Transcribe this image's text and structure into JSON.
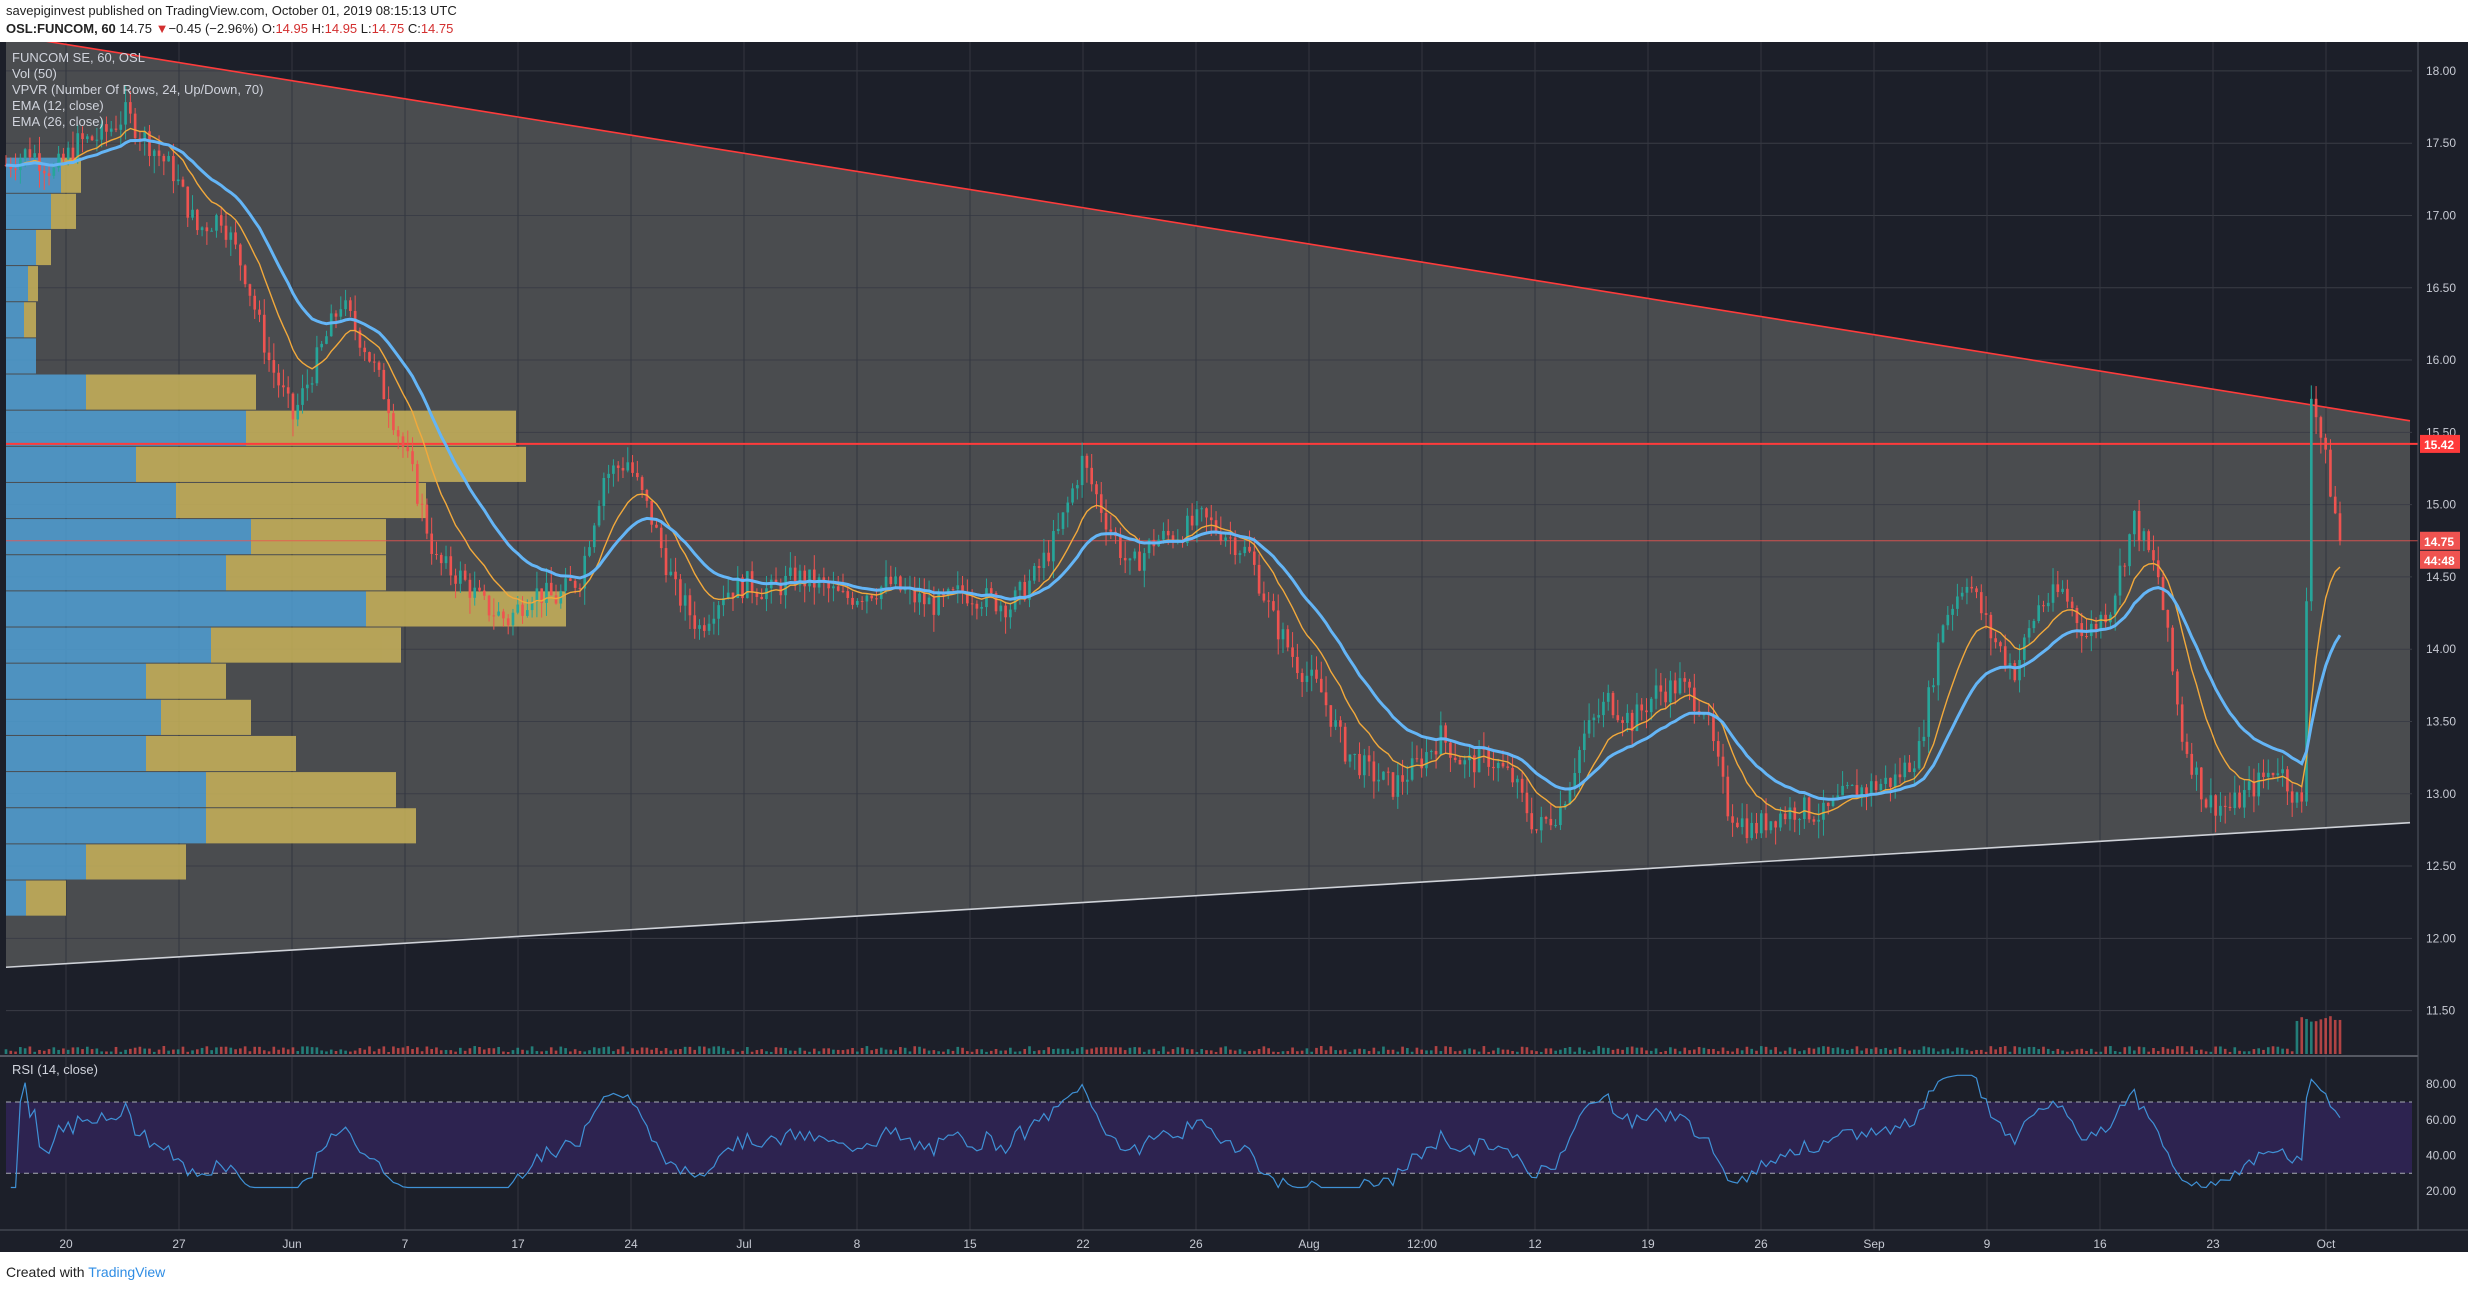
{
  "header": {
    "publisher": "savepiginvest",
    "published_text": "published on TradingView.com, October 01, 2019 08:15:13 UTC",
    "symbol": "OSL:FUNCOM, 60",
    "last": "14.75",
    "change_arrow": "▼",
    "change": "−0.45 (−2.96%)",
    "o_label": "O:",
    "o": "14.95",
    "h_label": "H:",
    "h": "14.95",
    "l_label": "L:",
    "l": "14.75",
    "c_label": "C:",
    "c": "14.75"
  },
  "legend": {
    "title": "FUNCOM SE, 60, OSL",
    "vol": "Vol (50)",
    "vpvr": "VPVR (Number Of Rows, 24, Up/Down, 70)",
    "ema12": "EMA (12, close)",
    "ema26": "EMA (26, close)"
  },
  "rsi_legend": "RSI (14, close)",
  "footer": {
    "created_with": "Created with",
    "brand": "TradingView"
  },
  "colors": {
    "background": "#1c1f29",
    "triangle_fill": "#4a4c4f",
    "up_candle": "#26a69a",
    "down_candle": "#ef5350",
    "ema12": "#f2a93b",
    "ema26": "#64b5f6",
    "vpvr_up": "#4f9fd4",
    "vpvr_down": "#c9b35a",
    "resistance": "#ff3b3b",
    "rsi_line": "#3f91d6",
    "rsi_band": "#2d2350"
  },
  "chart_data": {
    "type": "candlestick",
    "y_axis_labels": [
      "18.00",
      "17.50",
      "17.00",
      "16.50",
      "16.00",
      "15.50",
      "15.00",
      "14.50",
      "14.00",
      "13.50",
      "13.00",
      "12.50",
      "12.00",
      "11.50"
    ],
    "ylim": [
      11.2,
      18.2
    ],
    "x_axis_labels": [
      "20",
      "27",
      "Jun",
      "7",
      "17",
      "24",
      "Jul",
      "8",
      "15",
      "22",
      "26",
      "Aug",
      "12:00",
      "12",
      "19",
      "26",
      "Sep",
      "9",
      "16",
      "23",
      "Oct"
    ],
    "price_labels": {
      "resistance": "15.42",
      "last": "14.75",
      "countdown": "44:48"
    },
    "resistance_level": 15.42,
    "last_price": 14.75,
    "close_path": [
      {
        "x": 0,
        "y": 17.35
      },
      {
        "x": 5,
        "y": 17.45
      },
      {
        "x": 10,
        "y": 17.3
      },
      {
        "x": 15,
        "y": 17.5
      },
      {
        "x": 20,
        "y": 17.55
      },
      {
        "x": 25,
        "y": 17.7
      },
      {
        "x": 30,
        "y": 17.5
      },
      {
        "x": 35,
        "y": 17.3
      },
      {
        "x": 40,
        "y": 16.9
      },
      {
        "x": 45,
        "y": 17.0
      },
      {
        "x": 50,
        "y": 16.6
      },
      {
        "x": 55,
        "y": 16.0
      },
      {
        "x": 60,
        "y": 15.6
      },
      {
        "x": 65,
        "y": 16.0
      },
      {
        "x": 70,
        "y": 16.4
      },
      {
        "x": 75,
        "y": 16.1
      },
      {
        "x": 80,
        "y": 15.7
      },
      {
        "x": 85,
        "y": 15.2
      },
      {
        "x": 90,
        "y": 14.6
      },
      {
        "x": 95,
        "y": 14.5
      },
      {
        "x": 100,
        "y": 14.3
      },
      {
        "x": 105,
        "y": 14.2
      },
      {
        "x": 110,
        "y": 14.4
      },
      {
        "x": 115,
        "y": 14.35
      },
      {
        "x": 120,
        "y": 14.5
      },
      {
        "x": 125,
        "y": 15.2
      },
      {
        "x": 130,
        "y": 15.3
      },
      {
        "x": 135,
        "y": 14.9
      },
      {
        "x": 140,
        "y": 14.4
      },
      {
        "x": 145,
        "y": 14.15
      },
      {
        "x": 150,
        "y": 14.4
      },
      {
        "x": 155,
        "y": 14.45
      },
      {
        "x": 160,
        "y": 14.4
      },
      {
        "x": 165,
        "y": 14.5
      },
      {
        "x": 170,
        "y": 14.45
      },
      {
        "x": 175,
        "y": 14.35
      },
      {
        "x": 180,
        "y": 14.4
      },
      {
        "x": 185,
        "y": 14.45
      },
      {
        "x": 190,
        "y": 14.35
      },
      {
        "x": 195,
        "y": 14.3
      },
      {
        "x": 200,
        "y": 14.4
      },
      {
        "x": 205,
        "y": 14.35
      },
      {
        "x": 210,
        "y": 14.3
      },
      {
        "x": 215,
        "y": 14.5
      },
      {
        "x": 220,
        "y": 14.8
      },
      {
        "x": 225,
        "y": 15.3
      },
      {
        "x": 230,
        "y": 14.9
      },
      {
        "x": 235,
        "y": 14.55
      },
      {
        "x": 240,
        "y": 14.75
      },
      {
        "x": 245,
        "y": 14.8
      },
      {
        "x": 250,
        "y": 14.9
      },
      {
        "x": 255,
        "y": 14.8
      },
      {
        "x": 260,
        "y": 14.65
      },
      {
        "x": 265,
        "y": 14.2
      },
      {
        "x": 270,
        "y": 13.9
      },
      {
        "x": 275,
        "y": 13.7
      },
      {
        "x": 280,
        "y": 13.3
      },
      {
        "x": 285,
        "y": 13.15
      },
      {
        "x": 290,
        "y": 13.05
      },
      {
        "x": 295,
        "y": 13.2
      },
      {
        "x": 300,
        "y": 13.4
      },
      {
        "x": 305,
        "y": 13.2
      },
      {
        "x": 310,
        "y": 13.25
      },
      {
        "x": 315,
        "y": 13.1
      },
      {
        "x": 320,
        "y": 12.75
      },
      {
        "x": 325,
        "y": 12.9
      },
      {
        "x": 330,
        "y": 13.4
      },
      {
        "x": 335,
        "y": 13.65
      },
      {
        "x": 340,
        "y": 13.5
      },
      {
        "x": 345,
        "y": 13.7
      },
      {
        "x": 350,
        "y": 13.75
      },
      {
        "x": 355,
        "y": 13.6
      },
      {
        "x": 360,
        "y": 12.9
      },
      {
        "x": 365,
        "y": 12.75
      },
      {
        "x": 370,
        "y": 12.85
      },
      {
        "x": 375,
        "y": 12.9
      },
      {
        "x": 380,
        "y": 12.85
      },
      {
        "x": 385,
        "y": 13.0
      },
      {
        "x": 390,
        "y": 13.05
      },
      {
        "x": 395,
        "y": 13.1
      },
      {
        "x": 400,
        "y": 13.3
      },
      {
        "x": 405,
        "y": 14.2
      },
      {
        "x": 410,
        "y": 14.5
      },
      {
        "x": 415,
        "y": 14.1
      },
      {
        "x": 420,
        "y": 13.85
      },
      {
        "x": 425,
        "y": 14.3
      },
      {
        "x": 430,
        "y": 14.4
      },
      {
        "x": 435,
        "y": 14.1
      },
      {
        "x": 440,
        "y": 14.3
      },
      {
        "x": 445,
        "y": 14.9
      },
      {
        "x": 450,
        "y": 14.5
      },
      {
        "x": 455,
        "y": 13.4
      },
      {
        "x": 460,
        "y": 12.95
      },
      {
        "x": 465,
        "y": 12.9
      },
      {
        "x": 470,
        "y": 13.05
      },
      {
        "x": 475,
        "y": 13.2
      },
      {
        "x": 480,
        "y": 12.9
      },
      {
        "x": 482,
        "y": 15.8
      },
      {
        "x": 485,
        "y": 15.3
      },
      {
        "x": 488,
        "y": 14.75
      }
    ],
    "rsi": {
      "levels": [
        "80.00",
        "60.00",
        "40.00",
        "20.00"
      ],
      "ylim": [
        15,
        88
      ],
      "upper": 70,
      "lower": 30
    }
  }
}
